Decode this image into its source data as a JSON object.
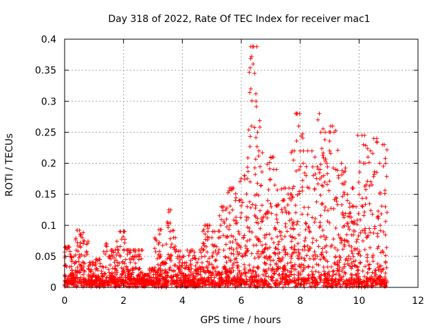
{
  "chart_data": {
    "type": "scatter",
    "title": "Day 318 of 2022, Rate Of TEC Index for receiver mac1",
    "xlabel": "GPS time / hours",
    "ylabel": "ROTI / TECUs",
    "xlim": [
      0,
      12
    ],
    "ylim": [
      0,
      0.4
    ],
    "x_ticks": [
      "0",
      "2",
      "4",
      "6",
      "8",
      "10",
      "12"
    ],
    "y_ticks": [
      "0",
      "0.05",
      "0.1",
      "0.15",
      "0.2",
      "0.25",
      "0.3",
      "0.35",
      "0.4"
    ],
    "x_tick_values": [
      0,
      2,
      4,
      6,
      8,
      10,
      12
    ],
    "y_tick_values": [
      0,
      0.05,
      0.1,
      0.15,
      0.2,
      0.25,
      0.3,
      0.35,
      0.4
    ],
    "grid": true,
    "marker": "+",
    "color": "#ff0000",
    "series": [
      {
        "name": "ROTI",
        "points": [
          [
            0.0,
            0.003
          ],
          [
            0.05,
            0.065
          ],
          [
            0.1,
            0.012
          ],
          [
            0.2,
            0.05
          ],
          [
            0.3,
            0.02
          ],
          [
            0.35,
            0.04
          ],
          [
            0.5,
            0.092
          ],
          [
            0.55,
            0.085
          ],
          [
            0.6,
            0.08
          ],
          [
            0.65,
            0.075
          ],
          [
            0.7,
            0.01
          ],
          [
            0.8,
            0.03
          ],
          [
            0.9,
            0.04
          ],
          [
            1.0,
            0.02
          ],
          [
            1.2,
            0.045
          ],
          [
            1.4,
            0.07
          ],
          [
            1.5,
            0.05
          ],
          [
            1.6,
            0.06
          ],
          [
            1.8,
            0.04
          ],
          [
            1.9,
            0.09
          ],
          [
            2.0,
            0.03
          ],
          [
            2.2,
            0.06
          ],
          [
            2.4,
            0.05
          ],
          [
            2.5,
            0.06
          ],
          [
            2.7,
            0.02
          ],
          [
            3.0,
            0.03
          ],
          [
            3.2,
            0.093
          ],
          [
            3.4,
            0.04
          ],
          [
            3.6,
            0.125
          ],
          [
            3.7,
            0.08
          ],
          [
            3.8,
            0.06
          ],
          [
            3.9,
            0.05
          ],
          [
            4.0,
            0.04
          ],
          [
            4.1,
            0.02
          ],
          [
            4.3,
            0.06
          ],
          [
            4.5,
            0.04
          ],
          [
            4.7,
            0.06
          ],
          [
            4.8,
            0.1
          ],
          [
            4.9,
            0.08
          ],
          [
            5.0,
            0.05
          ],
          [
            5.1,
            0.09
          ],
          [
            5.3,
            0.1
          ],
          [
            5.4,
            0.13
          ],
          [
            5.5,
            0.11
          ],
          [
            5.6,
            0.12
          ],
          [
            5.7,
            0.16
          ],
          [
            5.8,
            0.14
          ],
          [
            5.9,
            0.09
          ],
          [
            6.0,
            0.12
          ],
          [
            6.1,
            0.18
          ],
          [
            6.2,
            0.13
          ],
          [
            6.3,
            0.17
          ],
          [
            6.35,
            0.26
          ],
          [
            6.4,
            0.36
          ],
          [
            6.42,
            0.388
          ],
          [
            6.45,
            0.345
          ],
          [
            6.5,
            0.3
          ],
          [
            6.55,
            0.25
          ],
          [
            6.6,
            0.22
          ],
          [
            6.7,
            0.11
          ],
          [
            6.8,
            0.08
          ],
          [
            6.9,
            0.14
          ],
          [
            7.0,
            0.21
          ],
          [
            7.1,
            0.19
          ],
          [
            7.2,
            0.11
          ],
          [
            7.3,
            0.09
          ],
          [
            7.4,
            0.14
          ],
          [
            7.5,
            0.16
          ],
          [
            7.6,
            0.12
          ],
          [
            7.7,
            0.15
          ],
          [
            7.8,
            0.22
          ],
          [
            7.9,
            0.28
          ],
          [
            7.95,
            0.26
          ],
          [
            8.0,
            0.22
          ],
          [
            8.1,
            0.2
          ],
          [
            8.2,
            0.18
          ],
          [
            8.3,
            0.16
          ],
          [
            8.4,
            0.22
          ],
          [
            8.5,
            0.21
          ],
          [
            8.6,
            0.27
          ],
          [
            8.65,
            0.28
          ],
          [
            8.7,
            0.25
          ],
          [
            8.8,
            0.18
          ],
          [
            8.9,
            0.2
          ],
          [
            9.0,
            0.22
          ],
          [
            9.1,
            0.26
          ],
          [
            9.15,
            0.25
          ],
          [
            9.2,
            0.19
          ],
          [
            9.3,
            0.18
          ],
          [
            9.4,
            0.2
          ],
          [
            9.5,
            0.15
          ],
          [
            9.6,
            0.14
          ],
          [
            9.7,
            0.12
          ],
          [
            9.8,
            0.16
          ],
          [
            9.9,
            0.13
          ],
          [
            10.0,
            0.15
          ],
          [
            10.1,
            0.245
          ],
          [
            10.15,
            0.23
          ],
          [
            10.2,
            0.2
          ],
          [
            10.3,
            0.21
          ],
          [
            10.4,
            0.17
          ],
          [
            10.5,
            0.24
          ],
          [
            10.6,
            0.235
          ],
          [
            10.7,
            0.2
          ],
          [
            10.8,
            0.23
          ],
          [
            10.9,
            0.2
          ],
          [
            10.95,
            0.01
          ]
        ]
      }
    ]
  }
}
